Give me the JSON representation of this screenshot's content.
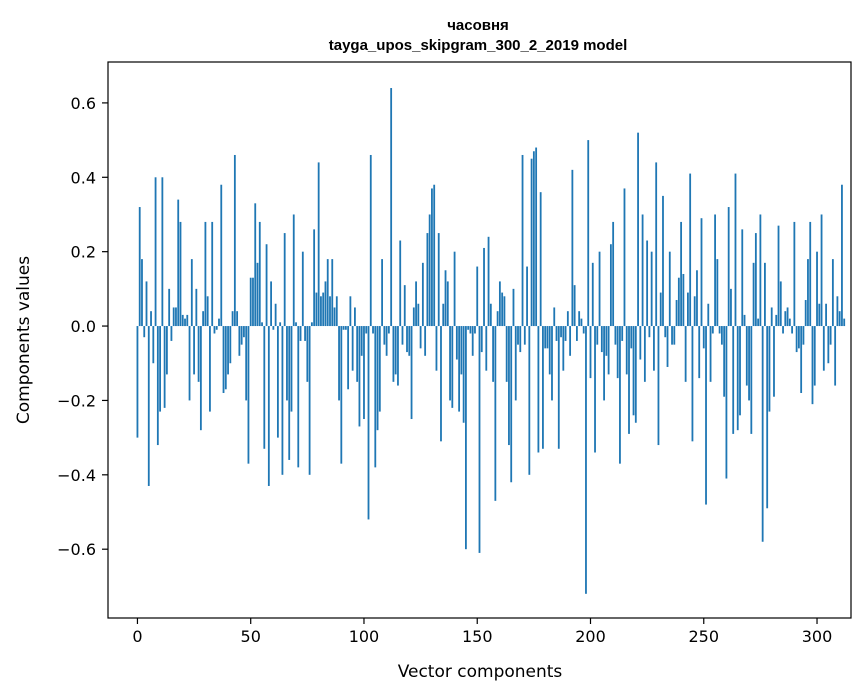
{
  "chart_data": {
    "type": "bar",
    "title": "часовня",
    "subtitle": "tayga_upos_skipgram_300_2_2019 model",
    "xlabel": "Vector components",
    "ylabel": "Components values",
    "xlim": [
      -13,
      315
    ],
    "ylim": [
      -0.785,
      0.71
    ],
    "xticks": [
      0,
      50,
      100,
      150,
      200,
      250,
      300
    ],
    "xtick_labels": [
      "0",
      "50",
      "100",
      "150",
      "200",
      "250",
      "300"
    ],
    "yticks": [
      -0.6,
      -0.4,
      -0.2,
      0.0,
      0.2,
      0.4,
      0.6
    ],
    "ytick_labels": [
      "−0.6",
      "−0.4",
      "−0.2",
      "0.0",
      "0.2",
      "0.4",
      "0.6"
    ],
    "bar_color": "#1f77b4",
    "grid": false,
    "series": [
      {
        "values": [
          -0.3,
          0.32,
          0.18,
          -0.03,
          0.12,
          -0.43,
          0.04,
          -0.1,
          0.4,
          -0.32,
          -0.23,
          0.4,
          -0.22,
          -0.13,
          0.1,
          -0.04,
          0.05,
          0.05,
          0.34,
          0.28,
          0.03,
          0.02,
          0.03,
          -0.2,
          0.18,
          -0.13,
          0.1,
          -0.15,
          -0.28,
          0.04,
          0.28,
          0.08,
          -0.23,
          0.28,
          -0.02,
          -0.01,
          0.02,
          0.38,
          -0.18,
          -0.17,
          -0.13,
          -0.1,
          0.04,
          0.46,
          0.04,
          -0.08,
          -0.05,
          -0.03,
          -0.2,
          -0.37,
          0.13,
          0.13,
          0.33,
          0.17,
          0.28,
          0.01,
          -0.33,
          0.22,
          -0.43,
          0.12,
          -0.01,
          0.06,
          -0.3,
          0.01,
          -0.4,
          0.25,
          -0.2,
          -0.36,
          -0.23,
          0.3,
          0.01,
          -0.38,
          -0.04,
          0.2,
          -0.04,
          -0.15,
          -0.4,
          0.01,
          0.26,
          0.09,
          0.44,
          0.08,
          0.09,
          0.12,
          0.18,
          0.08,
          0.18,
          0.05,
          0.08,
          -0.2,
          -0.37,
          -0.01,
          -0.01,
          -0.17,
          0.08,
          -0.12,
          0.05,
          -0.15,
          -0.27,
          -0.08,
          -0.25,
          -0.02,
          -0.52,
          0.46,
          -0.02,
          -0.38,
          -0.28,
          -0.23,
          0.18,
          -0.05,
          -0.08,
          -0.02,
          0.64,
          -0.15,
          -0.13,
          -0.16,
          0.23,
          -0.05,
          0.11,
          -0.07,
          -0.08,
          -0.25,
          0.05,
          0.12,
          0.06,
          -0.06,
          0.17,
          -0.08,
          0.25,
          0.3,
          0.37,
          0.38,
          -0.12,
          0.25,
          -0.31,
          0.06,
          0.15,
          0.12,
          -0.2,
          -0.22,
          0.2,
          -0.09,
          -0.23,
          -0.13,
          -0.26,
          -0.6,
          -0.01,
          -0.02,
          -0.08,
          -0.02,
          0.16,
          -0.61,
          -0.07,
          0.21,
          -0.12,
          0.24,
          0.06,
          -0.15,
          -0.47,
          0.04,
          0.12,
          0.09,
          0.08,
          -0.15,
          -0.32,
          -0.42,
          0.1,
          -0.2,
          -0.05,
          -0.07,
          0.46,
          -0.05,
          0.16,
          -0.4,
          0.45,
          0.47,
          0.48,
          -0.34,
          0.36,
          -0.33,
          -0.06,
          -0.06,
          -0.13,
          -0.2,
          0.05,
          -0.04,
          -0.33,
          -0.03,
          -0.12,
          -0.04,
          0.04,
          -0.08,
          0.42,
          0.11,
          -0.04,
          0.04,
          0.02,
          -0.02,
          -0.72,
          0.5,
          -0.14,
          0.17,
          -0.34,
          -0.05,
          0.2,
          -0.07,
          -0.2,
          -0.08,
          -0.13,
          0.22,
          0.28,
          -0.05,
          -0.14,
          -0.37,
          -0.04,
          0.37,
          -0.13,
          -0.29,
          -0.06,
          -0.24,
          -0.26,
          0.52,
          -0.09,
          0.3,
          -0.15,
          0.23,
          -0.03,
          0.2,
          -0.12,
          0.44,
          -0.32,
          0.09,
          0.35,
          -0.03,
          -0.11,
          0.2,
          -0.05,
          -0.05,
          0.07,
          0.13,
          0.28,
          0.14,
          -0.15,
          0.09,
          0.41,
          -0.31,
          0.08,
          0.15,
          -0.14,
          0.29,
          -0.06,
          -0.48,
          0.06,
          -0.15,
          -0.02,
          0.3,
          0.18,
          -0.02,
          -0.05,
          -0.19,
          -0.41,
          0.32,
          0.1,
          -0.29,
          0.41,
          -0.28,
          -0.24,
          0.26,
          0.03,
          -0.16,
          -0.2,
          -0.29,
          0.17,
          0.25,
          0.02,
          0.3,
          -0.58,
          0.17,
          -0.49,
          -0.23,
          0.05,
          -0.19,
          0.03,
          0.27,
          0.12,
          -0.02,
          0.04,
          0.05,
          0.02,
          -0.02,
          0.28,
          -0.07,
          -0.06,
          -0.18,
          -0.05,
          0.07,
          0.18,
          0.28,
          -0.21,
          -0.16,
          0.2,
          0.06,
          0.3,
          -0.12,
          0.06,
          -0.1,
          -0.05,
          0.18,
          -0.16,
          0.08,
          0.04,
          0.38,
          0.02
        ]
      }
    ]
  }
}
